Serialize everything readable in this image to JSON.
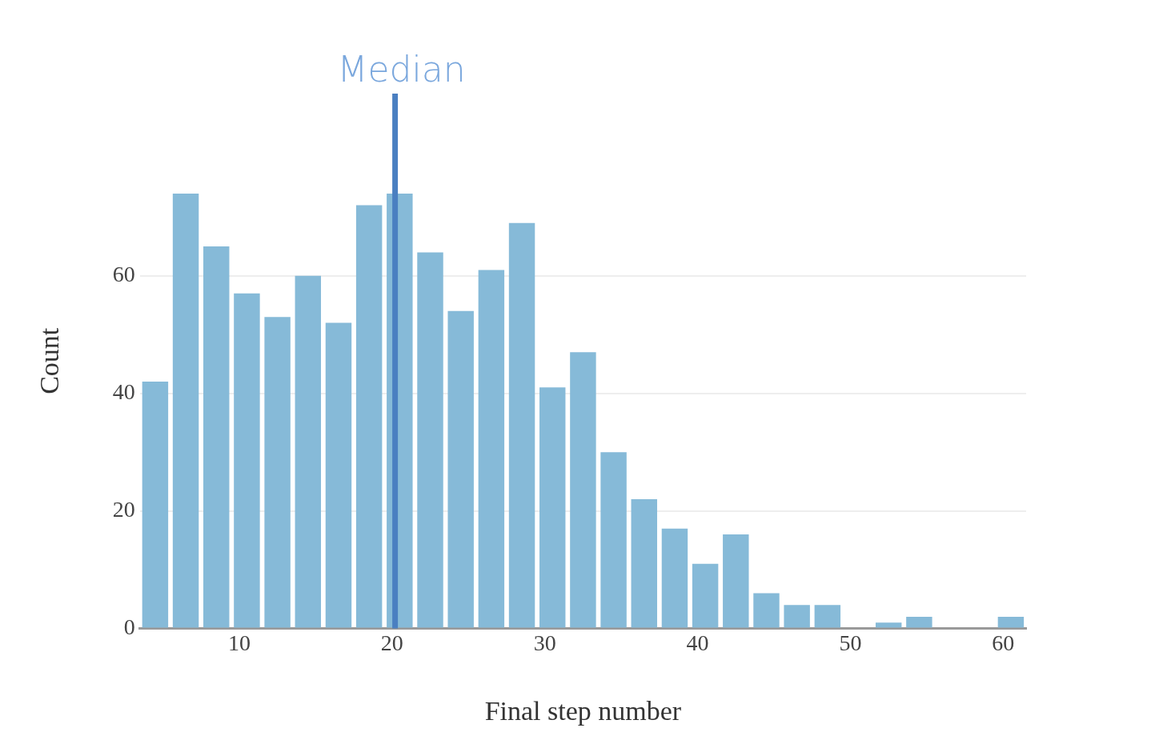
{
  "chart_data": {
    "type": "histogram",
    "xlabel": "Final step number",
    "ylabel": "Count",
    "bins": [
      3.5,
      5.5,
      7.5,
      9.5,
      11.5,
      13.5,
      15.5,
      17.5,
      19.5,
      21.5,
      23.5,
      25.5,
      27.5,
      29.5,
      31.5,
      33.5,
      35.5,
      37.5,
      39.5,
      41.5,
      43.5,
      45.5,
      47.5,
      49.5,
      51.5,
      53.5,
      55.5,
      57.5,
      59.5,
      61.5
    ],
    "values": [
      42,
      74,
      65,
      57,
      53,
      60,
      52,
      72,
      74,
      64,
      54,
      61,
      69,
      41,
      47,
      30,
      22,
      17,
      11,
      16,
      6,
      4,
      4,
      0,
      1,
      2,
      0,
      0,
      2
    ],
    "color": "#86bad8",
    "xlim": [
      3.5,
      61.5
    ],
    "xticks": [
      10,
      20,
      30,
      40,
      50,
      60
    ],
    "ylim": [
      0,
      91
    ],
    "yticks": [
      0,
      20,
      40,
      60
    ],
    "grid": "y",
    "legend": false,
    "ref_lines": [
      {
        "axis": "x",
        "value": 20.2,
        "label": "Median",
        "color": "#4a7fc1"
      }
    ]
  }
}
